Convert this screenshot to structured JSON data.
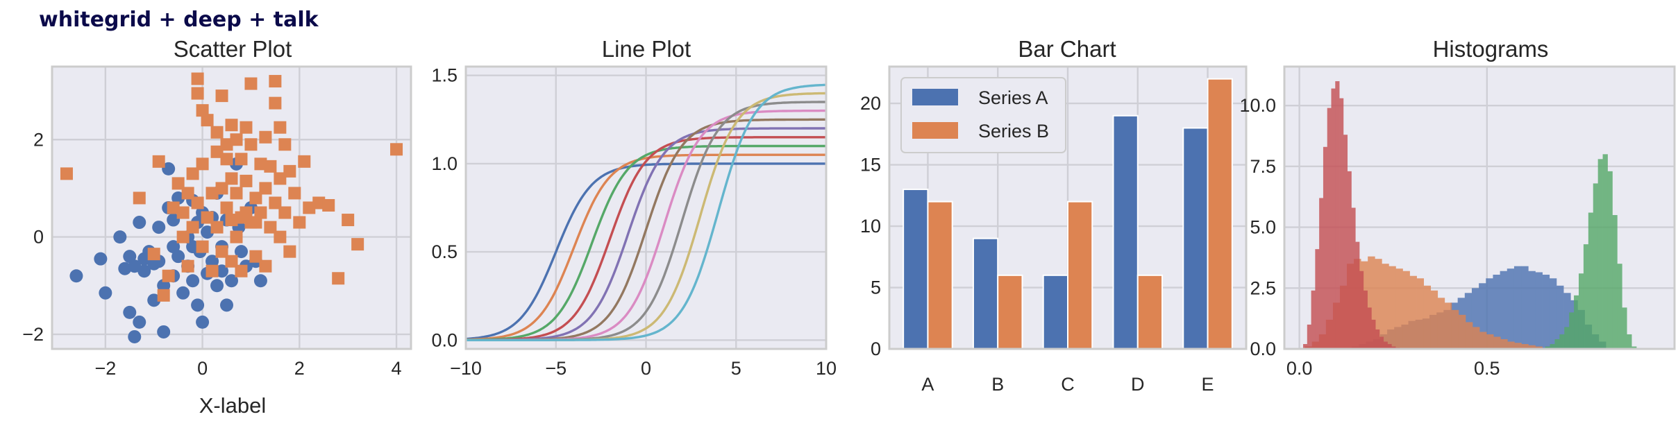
{
  "figure": {
    "suptitle": "whitegrid + deep + talk"
  },
  "colors": {
    "background": "#eaeaf2",
    "grid": "#cfcfd6",
    "deep": [
      "#4c72b0",
      "#dd8452",
      "#55a868",
      "#c44e52",
      "#8172b3",
      "#937860",
      "#da8bc3",
      "#8c8c8c",
      "#ccb974",
      "#64b5cd"
    ]
  },
  "chart_data": [
    {
      "type": "scatter",
      "title": "Scatter Plot",
      "xlabel": "X-label",
      "ylabel": "",
      "xlim": [
        -3.1,
        4.3
      ],
      "ylim": [
        -2.3,
        3.5
      ],
      "xticks": [
        -2,
        0,
        2,
        4
      ],
      "xtick_labels": [
        "−2",
        "0",
        "2",
        "4"
      ],
      "yticks": [
        -2,
        0,
        2
      ],
      "ytick_labels": [
        "−2",
        "0",
        "2"
      ],
      "grid": true,
      "series": [
        {
          "marker": "circle",
          "color": "#4c72b0",
          "points": [
            [
              -2.6,
              -0.8
            ],
            [
              -2.0,
              -1.15
            ],
            [
              -2.1,
              -0.45
            ],
            [
              -1.7,
              0.0
            ],
            [
              -1.6,
              -0.65
            ],
            [
              -1.5,
              -1.55
            ],
            [
              -1.4,
              -2.05
            ],
            [
              -1.3,
              -1.75
            ],
            [
              -1.5,
              -0.4
            ],
            [
              -1.4,
              -0.6
            ],
            [
              -1.3,
              0.3
            ],
            [
              -1.2,
              -0.7
            ],
            [
              -1.1,
              -0.3
            ],
            [
              -1.0,
              -1.3
            ],
            [
              -0.9,
              0.2
            ],
            [
              -0.9,
              -0.5
            ],
            [
              -0.8,
              -1.0
            ],
            [
              -0.8,
              -1.95
            ],
            [
              -0.7,
              1.4
            ],
            [
              -0.7,
              0.6
            ],
            [
              -0.6,
              -0.2
            ],
            [
              -0.6,
              -0.8
            ],
            [
              -0.5,
              0.8
            ],
            [
              -0.5,
              -0.4
            ],
            [
              -0.4,
              -1.15
            ],
            [
              -0.3,
              -0.6
            ],
            [
              -0.3,
              0.0
            ],
            [
              -0.2,
              0.75
            ],
            [
              -0.2,
              -0.9
            ],
            [
              -0.1,
              0.3
            ],
            [
              -0.1,
              -1.4
            ],
            [
              -0.05,
              -0.3
            ],
            [
              0.0,
              -1.75
            ],
            [
              0.1,
              -0.75
            ],
            [
              0.1,
              0.1
            ],
            [
              0.2,
              0.4
            ],
            [
              0.2,
              -0.5
            ],
            [
              0.3,
              -1.0
            ],
            [
              0.3,
              0.9
            ],
            [
              0.4,
              -0.2
            ],
            [
              0.4,
              -0.7
            ],
            [
              0.5,
              0.35
            ],
            [
              0.5,
              -1.4
            ],
            [
              0.6,
              -0.9
            ],
            [
              0.7,
              1.5
            ],
            [
              0.75,
              0.2
            ],
            [
              0.8,
              -0.3
            ],
            [
              0.9,
              -0.6
            ],
            [
              1.0,
              0.6
            ],
            [
              1.1,
              -0.5
            ],
            [
              1.2,
              -0.9
            ],
            [
              -1.0,
              -0.55
            ],
            [
              -0.2,
              -0.2
            ],
            [
              0.0,
              0.5
            ],
            [
              -0.6,
              0.35
            ],
            [
              -1.2,
              -0.45
            ]
          ]
        },
        {
          "marker": "square",
          "color": "#dd8452",
          "points": [
            [
              -2.8,
              1.3
            ],
            [
              -1.3,
              0.8
            ],
            [
              -1.0,
              -0.35
            ],
            [
              -0.9,
              1.55
            ],
            [
              -0.8,
              -1.2
            ],
            [
              -0.7,
              -0.8
            ],
            [
              -0.6,
              0.6
            ],
            [
              -0.5,
              1.1
            ],
            [
              -0.4,
              0.0
            ],
            [
              -0.3,
              -0.6
            ],
            [
              -0.2,
              0.2
            ],
            [
              -0.2,
              1.3
            ],
            [
              -0.1,
              0.7
            ],
            [
              -0.1,
              3.25
            ],
            [
              -0.1,
              2.95
            ],
            [
              0.0,
              1.5
            ],
            [
              0.0,
              -0.2
            ],
            [
              0.0,
              2.6
            ],
            [
              0.1,
              2.4
            ],
            [
              0.1,
              0.4
            ],
            [
              0.2,
              -0.7
            ],
            [
              0.2,
              0.9
            ],
            [
              0.3,
              1.75
            ],
            [
              0.3,
              0.2
            ],
            [
              0.3,
              2.15
            ],
            [
              0.4,
              1.0
            ],
            [
              0.4,
              -0.3
            ],
            [
              0.4,
              2.9
            ],
            [
              0.5,
              1.6
            ],
            [
              0.5,
              0.6
            ],
            [
              0.5,
              1.9
            ],
            [
              0.6,
              -0.5
            ],
            [
              0.6,
              2.3
            ],
            [
              0.6,
              1.2
            ],
            [
              0.7,
              0.9
            ],
            [
              0.7,
              2.0
            ],
            [
              0.7,
              0.0
            ],
            [
              0.8,
              1.6
            ],
            [
              0.8,
              0.4
            ],
            [
              0.8,
              -0.7
            ],
            [
              0.9,
              1.15
            ],
            [
              0.9,
              2.25
            ],
            [
              1.0,
              3.15
            ],
            [
              1.0,
              1.9
            ],
            [
              1.0,
              0.3
            ],
            [
              1.1,
              0.8
            ],
            [
              1.1,
              -0.4
            ],
            [
              1.2,
              1.5
            ],
            [
              1.2,
              0.5
            ],
            [
              1.3,
              2.05
            ],
            [
              1.3,
              1.0
            ],
            [
              1.3,
              -0.6
            ],
            [
              1.4,
              0.2
            ],
            [
              1.4,
              1.45
            ],
            [
              1.5,
              0.7
            ],
            [
              1.5,
              3.2
            ],
            [
              1.5,
              2.75
            ],
            [
              1.6,
              2.25
            ],
            [
              1.6,
              1.2
            ],
            [
              1.6,
              0.0
            ],
            [
              1.7,
              0.5
            ],
            [
              1.7,
              1.9
            ],
            [
              1.8,
              -0.3
            ],
            [
              1.8,
              1.35
            ],
            [
              1.9,
              0.9
            ],
            [
              2.0,
              0.3
            ],
            [
              2.1,
              1.55
            ],
            [
              2.2,
              0.6
            ],
            [
              2.4,
              0.7
            ],
            [
              2.6,
              0.65
            ],
            [
              2.8,
              -0.85
            ],
            [
              3.0,
              0.35
            ],
            [
              3.2,
              -0.15
            ],
            [
              4.0,
              1.8
            ],
            [
              -0.4,
              0.5
            ],
            [
              0.2,
              0.9
            ],
            [
              0.9,
              0.5
            ],
            [
              1.1,
              0.3
            ],
            [
              -0.3,
              0.9
            ],
            [
              0.6,
              0.35
            ]
          ]
        }
      ]
    },
    {
      "type": "line",
      "title": "Line Plot",
      "xlabel": "",
      "ylabel": "",
      "xlim": [
        -10,
        10
      ],
      "ylim": [
        -0.05,
        1.55
      ],
      "xticks": [
        -10,
        -5,
        0,
        5,
        10
      ],
      "xtick_labels": [
        "−10",
        "−5",
        "0",
        "5",
        "10"
      ],
      "yticks": [
        0.0,
        0.5,
        1.0,
        1.5
      ],
      "ytick_labels": [
        "0.0",
        "0.5",
        "1.0",
        "1.5"
      ],
      "grid": true,
      "series_formula": "y = (1 + i/20) / (1 + exp(-(x - (i - 5))))",
      "series": [
        {
          "shift": -5,
          "amplitude": 1.0,
          "color": "#4c72b0"
        },
        {
          "shift": -4,
          "amplitude": 1.05,
          "color": "#dd8452"
        },
        {
          "shift": -3,
          "amplitude": 1.1,
          "color": "#55a868"
        },
        {
          "shift": -2,
          "amplitude": 1.15,
          "color": "#c44e52"
        },
        {
          "shift": -1,
          "amplitude": 1.2,
          "color": "#8172b3"
        },
        {
          "shift": 0,
          "amplitude": 1.25,
          "color": "#937860"
        },
        {
          "shift": 1,
          "amplitude": 1.3,
          "color": "#da8bc3"
        },
        {
          "shift": 2,
          "amplitude": 1.35,
          "color": "#8c8c8c"
        },
        {
          "shift": 3,
          "amplitude": 1.4,
          "color": "#ccb974"
        },
        {
          "shift": 4,
          "amplitude": 1.45,
          "color": "#64b5cd"
        }
      ]
    },
    {
      "type": "bar",
      "title": "Bar Chart",
      "xlabel": "",
      "ylabel": "",
      "categories": [
        "A",
        "B",
        "C",
        "D",
        "E"
      ],
      "ylim": [
        0,
        23
      ],
      "yticks": [
        0,
        5,
        10,
        15,
        20
      ],
      "ytick_labels": [
        "0",
        "5",
        "10",
        "15",
        "20"
      ],
      "grid": true,
      "legend": "top-left",
      "series": [
        {
          "name": "Series A",
          "color": "#4c72b0",
          "values": [
            13,
            9,
            6,
            19,
            18
          ]
        },
        {
          "name": "Series B",
          "color": "#dd8452",
          "values": [
            12,
            6,
            12,
            6,
            22
          ]
        }
      ]
    },
    {
      "type": "histogram",
      "title": "Histograms",
      "xlabel": "",
      "ylabel": "",
      "xlim": [
        -0.04,
        1.0
      ],
      "ylim": [
        0,
        11.6
      ],
      "xticks": [
        0.0,
        0.5
      ],
      "xtick_labels": [
        "0.0",
        "0.5"
      ],
      "yticks": [
        0.0,
        2.5,
        5.0,
        7.5,
        10.0
      ],
      "ytick_labels": [
        "0.0",
        "2.5",
        "5.0",
        "7.5",
        "10.0"
      ],
      "grid": true,
      "series": [
        {
          "color": "#4c72b0",
          "opacity": 0.8,
          "bin_start": 0.14,
          "bin_width": 0.0188,
          "values": [
            0.1,
            0.2,
            0.3,
            0.4,
            0.6,
            0.8,
            0.9,
            1.0,
            1.15,
            1.2,
            1.25,
            1.4,
            1.5,
            1.6,
            1.9,
            2.1,
            2.3,
            2.5,
            2.7,
            2.9,
            3.05,
            3.2,
            3.3,
            3.4,
            3.4,
            3.2,
            3.15,
            3.05,
            2.9,
            2.6,
            2.3,
            2.0,
            1.6,
            1.0,
            0.6,
            0.3
          ]
        },
        {
          "color": "#dd8452",
          "opacity": 0.8,
          "bin_start": 0.015,
          "bin_width": 0.0186,
          "values": [
            0.1,
            0.3,
            0.6,
            1.2,
            1.9,
            2.6,
            3.5,
            3.7,
            3.6,
            3.8,
            3.7,
            3.5,
            3.4,
            3.3,
            3.2,
            3.0,
            2.9,
            2.6,
            2.4,
            2.1,
            1.9,
            1.6,
            1.4,
            1.1,
            0.9,
            0.7,
            0.6,
            0.5,
            0.4,
            0.3,
            0.25,
            0.2,
            0.15,
            0.1
          ]
        },
        {
          "color": "#55a868",
          "opacity": 0.8,
          "bin_start": 0.655,
          "bin_width": 0.0128,
          "values": [
            0.1,
            0.2,
            0.4,
            0.6,
            0.9,
            1.5,
            2.2,
            3.1,
            4.3,
            5.6,
            6.8,
            7.8,
            8.0,
            7.3,
            5.5,
            3.5,
            1.7,
            0.6,
            0.1
          ]
        },
        {
          "color": "#c44e52",
          "opacity": 0.8,
          "bin_start": 0.01,
          "bin_width": 0.0107,
          "values": [
            0.2,
            1.0,
            2.4,
            4.1,
            6.2,
            8.3,
            9.9,
            10.7,
            11.0,
            10.3,
            8.8,
            7.3,
            5.8,
            4.4,
            3.2,
            2.4,
            1.7,
            1.2,
            0.8,
            0.5,
            0.3,
            0.2,
            0.1,
            0.05
          ]
        }
      ]
    }
  ]
}
